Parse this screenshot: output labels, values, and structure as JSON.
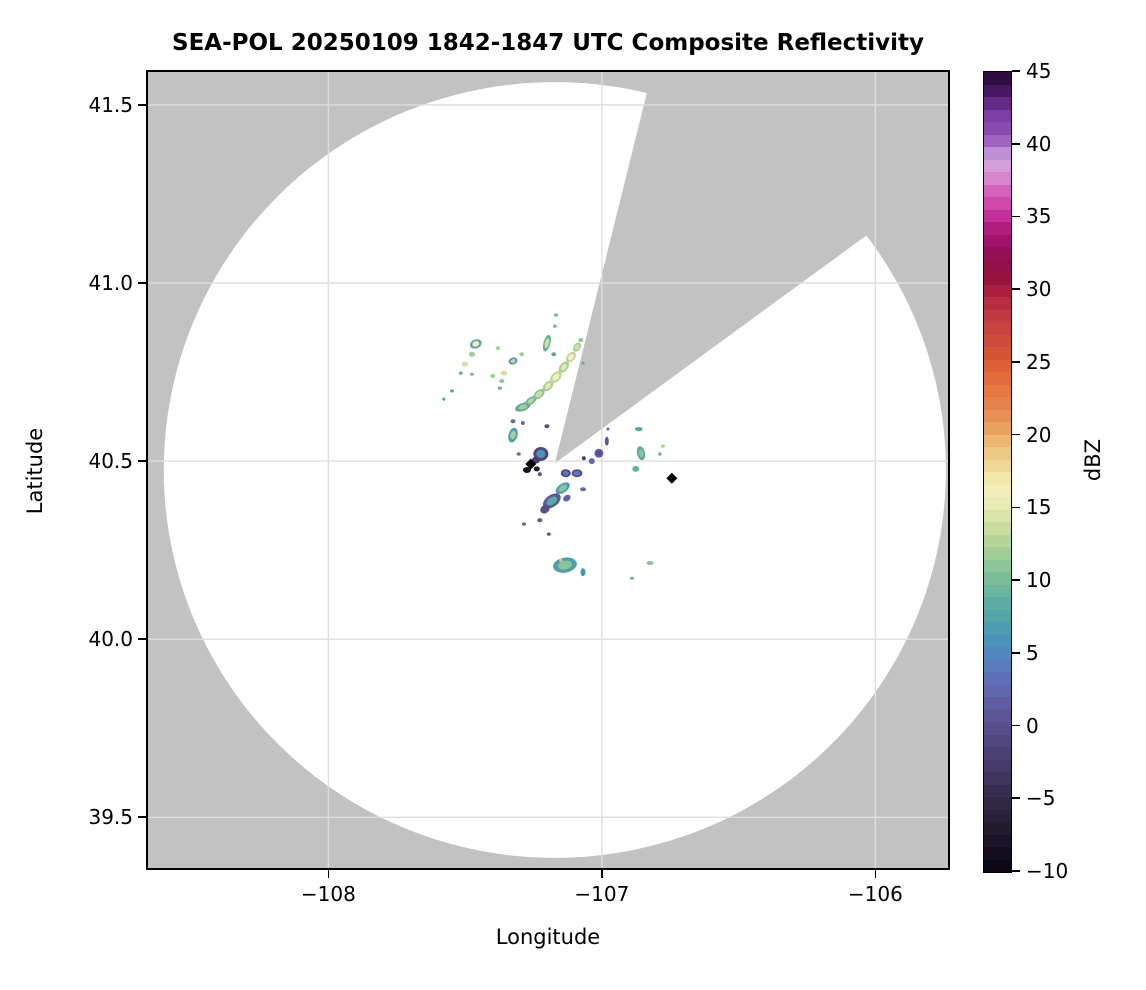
{
  "figure": {
    "title": "SEA-POL 20250109 1842-1847 UTC Composite Reflectivity",
    "xlabel": "Longitude",
    "ylabel": "Latitude",
    "colorbar_label": "dBZ"
  },
  "chart_data": {
    "type": "heatmap",
    "title": "SEA-POL 20250109 1842-1847 UTC Composite Reflectivity",
    "xlabel": "Longitude",
    "ylabel": "Latitude",
    "grid": true,
    "xlim": [
      -108.667,
      -105.727
    ],
    "ylim": [
      39.352,
      41.598
    ],
    "x_ticks": [
      -108,
      -107,
      -106
    ],
    "x_tick_labels": [
      "−108",
      "−107",
      "−106"
    ],
    "y_ticks": [
      39.5,
      40.0,
      40.5,
      41.0,
      41.5
    ],
    "y_tick_labels": [
      "39.5",
      "40.0",
      "40.5",
      "41.0",
      "41.5"
    ],
    "colorbar": {
      "label": "dBZ",
      "min": -10,
      "max": 45,
      "segments": 64,
      "ticks": [
        45,
        40,
        35,
        30,
        25,
        20,
        15,
        10,
        5,
        0,
        -5,
        -10
      ],
      "tick_labels": [
        "45",
        "40",
        "35",
        "30",
        "25",
        "20",
        "15",
        "10",
        "5",
        "0",
        "−5",
        "−10"
      ]
    },
    "colormap_stops": [
      [
        -10,
        "#0a0612"
      ],
      [
        -9,
        "#120b1c"
      ],
      [
        -8,
        "#1a1226"
      ],
      [
        -7,
        "#221a31"
      ],
      [
        -6,
        "#2a213d"
      ],
      [
        -5,
        "#322849"
      ],
      [
        -4,
        "#3a3057"
      ],
      [
        -3,
        "#423764"
      ],
      [
        -2,
        "#4a3e72"
      ],
      [
        -1,
        "#52467f"
      ],
      [
        0,
        "#594e8d"
      ],
      [
        1,
        "#5e5699"
      ],
      [
        2,
        "#6160a6"
      ],
      [
        3,
        "#5f6cb4"
      ],
      [
        4,
        "#5a7abc"
      ],
      [
        5,
        "#5287bd"
      ],
      [
        6,
        "#4c93b7"
      ],
      [
        7,
        "#4e9fae"
      ],
      [
        8,
        "#57a9a5"
      ],
      [
        9,
        "#64b29e"
      ],
      [
        10,
        "#75bb9a"
      ],
      [
        11,
        "#8bc497"
      ],
      [
        12,
        "#a3ce97"
      ],
      [
        13,
        "#bcd79b"
      ],
      [
        14,
        "#d2e0a1"
      ],
      [
        15,
        "#e5e9ae"
      ],
      [
        16,
        "#f1efc0"
      ],
      [
        17,
        "#f2e8a8"
      ],
      [
        18,
        "#efd796"
      ],
      [
        19,
        "#edc47e"
      ],
      [
        20,
        "#ebad68"
      ],
      [
        21,
        "#e9975a"
      ],
      [
        22,
        "#e8854e"
      ],
      [
        23,
        "#e67944"
      ],
      [
        24,
        "#e26a3c"
      ],
      [
        25,
        "#dd5c36"
      ],
      [
        26,
        "#d65038"
      ],
      [
        27,
        "#cc463f"
      ],
      [
        28,
        "#c43d41"
      ],
      [
        29,
        "#bb2f40"
      ],
      [
        30,
        "#ab1c3e"
      ],
      [
        31,
        "#94123f"
      ],
      [
        32,
        "#8e104c"
      ],
      [
        33,
        "#9a1260"
      ],
      [
        34,
        "#ab1877"
      ],
      [
        35,
        "#c02d97"
      ],
      [
        36,
        "#cf4aac"
      ],
      [
        37,
        "#d667bd"
      ],
      [
        38,
        "#d893d2"
      ],
      [
        39,
        "#cda9e0"
      ],
      [
        40,
        "#a76cc6"
      ],
      [
        41,
        "#8c4cb1"
      ],
      [
        42,
        "#7d3fa5"
      ],
      [
        43,
        "#5e2681"
      ],
      [
        44,
        "#3d1054"
      ],
      [
        45,
        "#270b33"
      ]
    ],
    "radar": {
      "name": "SEA-POL",
      "center_lon": -107.172,
      "center_lat": 40.494,
      "background_color": "#c2c2c2",
      "coverage_color": "#ffffff",
      "gridline_color": "#dedede",
      "coverage_center_lon": -107.172,
      "coverage_center_lat": 40.475,
      "coverage_rx_deg": 1.43,
      "coverage_ry_deg": 1.089,
      "blocked_wedge_polygon": [
        [
          -107.172,
          40.494
        ],
        [
          -106.77,
          41.736
        ],
        [
          -105.581,
          41.387
        ]
      ]
    },
    "site_markers": [
      {
        "lon": -107.26,
        "lat": 40.492
      },
      {
        "lon": -106.744,
        "lat": 40.452
      }
    ],
    "echoes": [
      {
        "lon": -107.461,
        "lat": 40.829,
        "dbz": 8,
        "core": 16,
        "w": 12,
        "h": 9,
        "rot": -20
      },
      {
        "lon": -107.475,
        "lat": 40.8,
        "dbz": 12,
        "w": 6,
        "h": 5
      },
      {
        "lon": -107.501,
        "lat": 40.772,
        "dbz": 14,
        "w": 6,
        "h": 5
      },
      {
        "lon": -107.516,
        "lat": 40.747,
        "dbz": 9,
        "w": 4,
        "h": 3
      },
      {
        "lon": -107.475,
        "lat": 40.744,
        "dbz": 10,
        "w": 4,
        "h": 3
      },
      {
        "lon": -107.399,
        "lat": 40.739,
        "dbz": 12,
        "w": 5,
        "h": 4
      },
      {
        "lon": -107.366,
        "lat": 40.725,
        "dbz": 11,
        "w": 5,
        "h": 4
      },
      {
        "lon": -107.373,
        "lat": 40.705,
        "dbz": 9,
        "w": 4,
        "h": 3
      },
      {
        "lon": -107.325,
        "lat": 40.781,
        "dbz": 6,
        "core": 13,
        "w": 9,
        "h": 7,
        "rot": -20
      },
      {
        "lon": -107.293,
        "lat": 40.8,
        "dbz": 12,
        "w": 5,
        "h": 4
      },
      {
        "lon": -107.38,
        "lat": 40.817,
        "dbz": 12,
        "w": 4,
        "h": 4
      },
      {
        "lon": -107.358,
        "lat": 40.747,
        "dbz": 14,
        "w": 7,
        "h": 5
      },
      {
        "lon": -107.201,
        "lat": 40.831,
        "dbz": 9,
        "core": 14,
        "w": 7,
        "h": 17,
        "rot": 15
      },
      {
        "lon": -107.172,
        "lat": 40.879,
        "dbz": 10,
        "w": 4,
        "h": 3
      },
      {
        "lon": -107.168,
        "lat": 40.91,
        "dbz": 9,
        "w": 4,
        "h": 3
      },
      {
        "lon": -107.176,
        "lat": 40.8,
        "dbz": 8,
        "w": 5,
        "h": 4
      },
      {
        "lon": -107.548,
        "lat": 40.697,
        "dbz": 8,
        "w": 4,
        "h": 3
      },
      {
        "lon": -107.578,
        "lat": 40.674,
        "dbz": 8,
        "w": 3,
        "h": 3
      },
      {
        "lon": -107.289,
        "lat": 40.652,
        "dbz": 8,
        "core": 12,
        "w": 16,
        "h": 8,
        "rot": -20
      },
      {
        "lon": -107.26,
        "lat": 40.669,
        "dbz": 9,
        "core": 13,
        "w": 13,
        "h": 7,
        "rot": -35
      },
      {
        "lon": -107.23,
        "lat": 40.688,
        "dbz": 11,
        "core": 14,
        "w": 13,
        "h": 8,
        "rot": -40
      },
      {
        "lon": -107.197,
        "lat": 40.711,
        "dbz": 12,
        "core": 15,
        "w": 13,
        "h": 8,
        "rot": -45
      },
      {
        "lon": -107.168,
        "lat": 40.736,
        "dbz": 13,
        "core": 16,
        "w": 14,
        "h": 9,
        "rot": -45
      },
      {
        "lon": -107.139,
        "lat": 40.764,
        "dbz": 12,
        "core": 15,
        "w": 13,
        "h": 8,
        "rot": -50
      },
      {
        "lon": -107.113,
        "lat": 40.792,
        "dbz": 13,
        "core": 16,
        "w": 12,
        "h": 8,
        "rot": -50
      },
      {
        "lon": -107.091,
        "lat": 40.82,
        "dbz": 12,
        "core": 14,
        "w": 10,
        "h": 7,
        "rot": -55
      },
      {
        "lon": -107.077,
        "lat": 40.84,
        "dbz": 11,
        "w": 5,
        "h": 4
      },
      {
        "lon": -107.069,
        "lat": 40.775,
        "dbz": 9,
        "w": 3,
        "h": 3
      },
      {
        "lon": -107.325,
        "lat": 40.573,
        "dbz": 7,
        "core": 12,
        "w": 9,
        "h": 15,
        "rot": 15
      },
      {
        "lon": -107.325,
        "lat": 40.612,
        "dbz": 3,
        "w": 5,
        "h": 4
      },
      {
        "lon": -107.289,
        "lat": 40.607,
        "dbz": 3,
        "w": 4,
        "h": 4
      },
      {
        "lon": -107.201,
        "lat": 40.598,
        "dbz": 0,
        "w": 5,
        "h": 4
      },
      {
        "lon": -107.223,
        "lat": 40.52,
        "dbz": -1,
        "core": 6,
        "w": 15,
        "h": 14
      },
      {
        "lon": -107.241,
        "lat": 40.503,
        "dbz": -2,
        "w": 8,
        "h": 7
      },
      {
        "lon": -107.304,
        "lat": 40.52,
        "dbz": 2,
        "w": 4,
        "h": 3
      },
      {
        "lon": -107.274,
        "lat": 40.475,
        "dbz": -8,
        "w": 8,
        "h": 6
      },
      {
        "lon": -107.238,
        "lat": 40.478,
        "dbz": -7,
        "w": 6,
        "h": 5
      },
      {
        "lon": -107.227,
        "lat": 40.463,
        "dbz": 0,
        "w": 4,
        "h": 4
      },
      {
        "lon": -107.132,
        "lat": 40.466,
        "dbz": -1,
        "core": 4,
        "w": 10,
        "h": 8
      },
      {
        "lon": -107.091,
        "lat": 40.466,
        "dbz": 0,
        "core": 4,
        "w": 11,
        "h": 8
      },
      {
        "lon": -107.066,
        "lat": 40.508,
        "dbz": -2,
        "w": 4,
        "h": 4
      },
      {
        "lon": -107.037,
        "lat": 40.5,
        "dbz": 3,
        "w": 6,
        "h": 6
      },
      {
        "lon": -107.011,
        "lat": 40.522,
        "dbz": 2,
        "core": 0,
        "w": 9,
        "h": 9
      },
      {
        "lon": -106.982,
        "lat": 40.556,
        "dbz": 1,
        "w": 4,
        "h": 9
      },
      {
        "lon": -106.978,
        "lat": 40.59,
        "dbz": 4,
        "w": 3,
        "h": 3
      },
      {
        "lon": -106.865,
        "lat": 40.59,
        "dbz": 8,
        "w": 8,
        "h": 4
      },
      {
        "lon": -106.857,
        "lat": 40.522,
        "dbz": 8,
        "core": 11,
        "w": 8,
        "h": 14,
        "rot": -12
      },
      {
        "lon": -106.876,
        "lat": 40.478,
        "dbz": 9,
        "w": 7,
        "h": 6
      },
      {
        "lon": -106.777,
        "lat": 40.542,
        "dbz": 12,
        "w": 4,
        "h": 3
      },
      {
        "lon": -106.788,
        "lat": 40.52,
        "dbz": 8,
        "w": 3,
        "h": 3
      },
      {
        "lon": -107.143,
        "lat": 40.424,
        "dbz": 7,
        "core": 11,
        "w": 16,
        "h": 9,
        "rot": -35
      },
      {
        "lon": -107.183,
        "lat": 40.388,
        "dbz": 1,
        "core": 8,
        "w": 20,
        "h": 12,
        "rot": -35
      },
      {
        "lon": -107.208,
        "lat": 40.365,
        "dbz": 0,
        "w": 10,
        "h": 8,
        "rot": -35
      },
      {
        "lon": -107.128,
        "lat": 40.396,
        "dbz": 2,
        "w": 8,
        "h": 6,
        "rot": -35
      },
      {
        "lon": -107.069,
        "lat": 40.421,
        "dbz": 3,
        "w": 6,
        "h": 4
      },
      {
        "lon": -107.227,
        "lat": 40.334,
        "dbz": 1,
        "w": 5,
        "h": 4
      },
      {
        "lon": -107.285,
        "lat": 40.323,
        "dbz": 2,
        "w": 4,
        "h": 3
      },
      {
        "lon": -107.194,
        "lat": 40.295,
        "dbz": 1,
        "w": 4,
        "h": 3
      },
      {
        "lon": -107.135,
        "lat": 40.208,
        "dbz": 7,
        "core": 11,
        "w": 24,
        "h": 15,
        "rot": -10
      },
      {
        "lon": -107.15,
        "lat": 40.222,
        "dbz": 19,
        "w": 3,
        "h": 3
      },
      {
        "lon": -107.069,
        "lat": 40.188,
        "dbz": 6,
        "w": 5,
        "h": 8
      },
      {
        "lon": -106.824,
        "lat": 40.214,
        "dbz": 11,
        "w": 7,
        "h": 4
      },
      {
        "lon": -106.89,
        "lat": 40.171,
        "dbz": 10,
        "w": 4,
        "h": 3
      }
    ]
  }
}
